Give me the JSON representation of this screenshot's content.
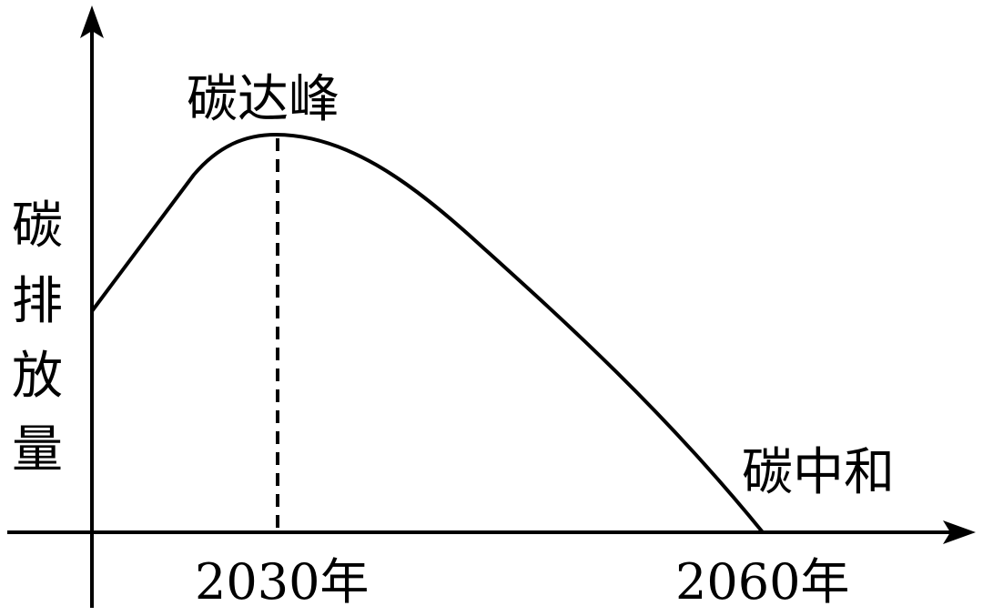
{
  "diagram": {
    "y_axis_label_chars": [
      "碳",
      "排",
      "放",
      "量"
    ],
    "peak_label": "碳达峰",
    "neutral_label": "碳中和",
    "x_ticks": [
      "2030年",
      "2060年"
    ],
    "colors": {
      "line": "#000000",
      "background": "#ffffff"
    }
  },
  "chart_data": {
    "type": "line",
    "xlabel": "",
    "ylabel": "碳排放量",
    "x_ticks": [
      "2030年",
      "2060年"
    ],
    "annotations": [
      "碳达峰",
      "碳中和"
    ],
    "series": [
      {
        "description_points": [
          {
            "x": "start",
            "y": "moderate"
          },
          {
            "x": "2030年",
            "y": "peak"
          },
          {
            "x": "2060年",
            "y": 0
          }
        ]
      }
    ],
    "peak_marker": "dashed vertical line at 2030年",
    "grid": false
  }
}
